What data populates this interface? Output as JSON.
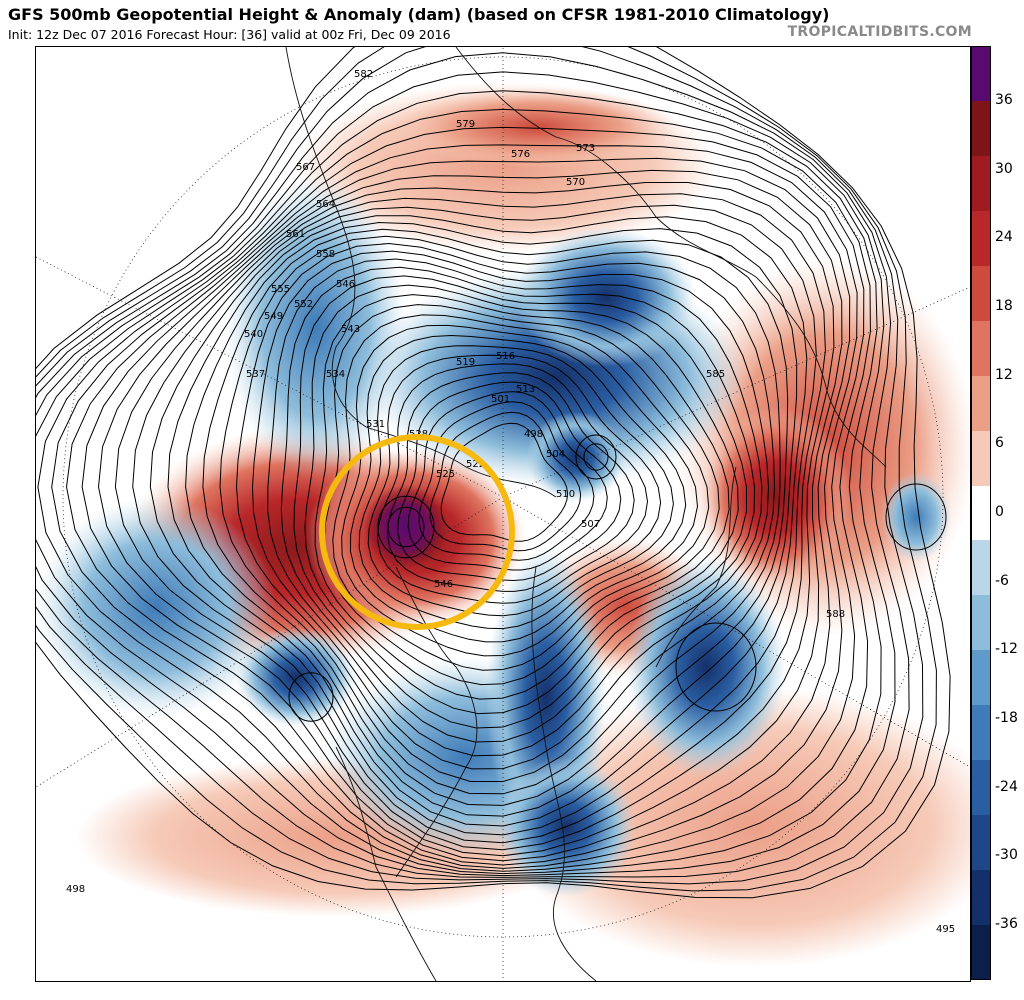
{
  "header": {
    "title": "GFS 500mb Geopotential Height & Anomaly (dam) (based on CFSR 1981-2010 Climatology)",
    "subtitle": "Init: 12z Dec 07 2016   Forecast Hour: [36]   valid at 00z Fri, Dec 09 2016",
    "brand": "TROPICALTIDBITS.COM"
  },
  "colorbar": {
    "labels": [
      "36",
      "30",
      "24",
      "18",
      "12",
      "6",
      "0",
      "-6",
      "-12",
      "-18",
      "-24",
      "-30",
      "-36"
    ],
    "colors": [
      "#5a0a6e",
      "#7d1418",
      "#9e1c1f",
      "#b8272a",
      "#cd4a3c",
      "#df7460",
      "#eb9f87",
      "#f6cab8",
      "#ffffff",
      "#b9d7e8",
      "#8ebddb",
      "#5f9bca",
      "#3f7bb8",
      "#2a5ea2",
      "#1f4788",
      "#14306a",
      "#0c1f4a"
    ]
  },
  "map": {
    "contour_labels": [
      "582",
      "579",
      "576",
      "573",
      "570",
      "567",
      "564",
      "561",
      "558",
      "555",
      "552",
      "549",
      "546",
      "543",
      "540",
      "537",
      "534",
      "531",
      "528",
      "525",
      "522",
      "519",
      "516",
      "513",
      "510",
      "507",
      "504",
      "501",
      "498",
      "495",
      "585",
      "588"
    ],
    "highlight_color": "#f5b90f",
    "ridge_label": "546",
    "trough_label": "498"
  }
}
